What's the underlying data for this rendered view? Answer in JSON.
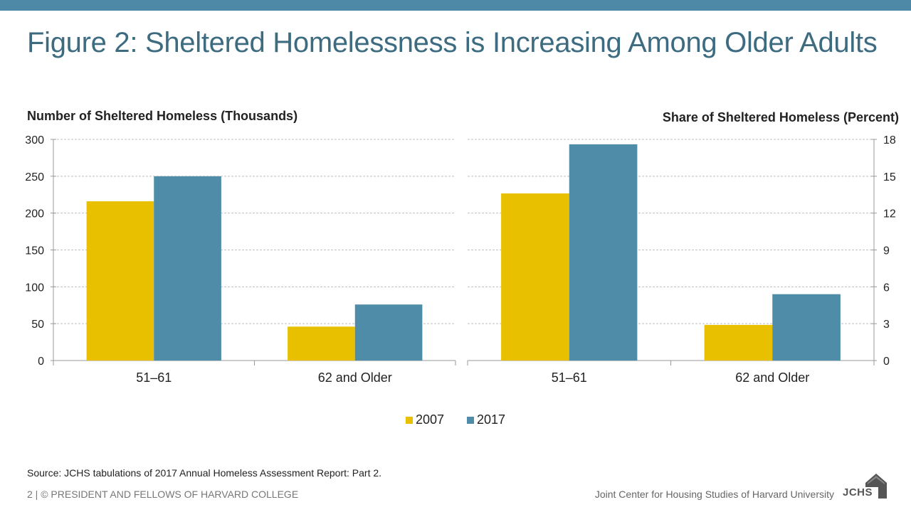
{
  "header": {
    "title": "Figure 2: Sheltered Homelessness is Increasing Among Older Adults"
  },
  "colors": {
    "topbar": "#4e8aa8",
    "title": "#3d6b80",
    "series_2007": "#e8c000",
    "series_2017": "#4e8ca8"
  },
  "chart_data": [
    {
      "type": "bar",
      "title": "Number of Sheltered Homeless (Thousands)",
      "categories": [
        "51–61",
        "62 and Older"
      ],
      "series": [
        {
          "name": "2007",
          "values": [
            216,
            46
          ]
        },
        {
          "name": "2017",
          "values": [
            250,
            76
          ]
        }
      ],
      "ylim": [
        0,
        300
      ],
      "yticks": [
        "0",
        "50",
        "100",
        "150",
        "200",
        "250",
        "300"
      ],
      "ytick_values": [
        0,
        50,
        100,
        150,
        200,
        250,
        300
      ],
      "yaxis_side": "left",
      "grid": true,
      "legend": "bottom-center"
    },
    {
      "type": "bar",
      "title": "Share of Sheltered Homeless (Percent)",
      "categories": [
        "51–61",
        "62 and Older"
      ],
      "series": [
        {
          "name": "2007",
          "values": [
            13.6,
            2.9
          ]
        },
        {
          "name": "2017",
          "values": [
            17.6,
            5.4
          ]
        }
      ],
      "ylim": [
        0,
        18
      ],
      "yticks": [
        "0",
        "3",
        "6",
        "9",
        "12",
        "15",
        "18"
      ],
      "ytick_values": [
        0,
        3,
        6,
        9,
        12,
        15,
        18
      ],
      "yaxis_side": "right",
      "grid": true,
      "legend": "bottom-center"
    }
  ],
  "legend": {
    "items": [
      {
        "label": "2007",
        "color": "#e8c000"
      },
      {
        "label": "2017",
        "color": "#4e8ca8"
      }
    ]
  },
  "source": "Source: JCHS tabulations of 2017 Annual Homeless Assessment Report: Part 2.",
  "footer": {
    "left": "2 | © PRESIDENT AND FELLOWS OF HARVARD COLLEGE",
    "right": "Joint Center for Housing Studies of Harvard University",
    "logo_text": "JCHS"
  }
}
